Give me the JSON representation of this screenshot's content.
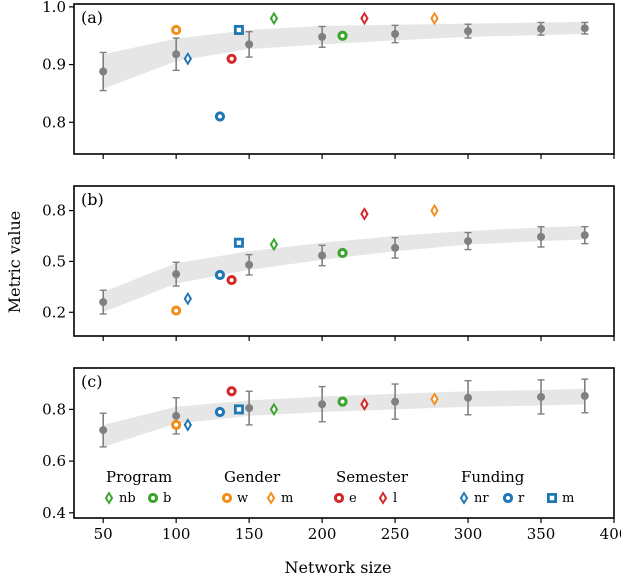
{
  "chart_data": {
    "type": "scatter",
    "xlabel": "Network size",
    "ylabel": "Metric value",
    "xlim": [
      30,
      400
    ],
    "xticks": [
      50,
      100,
      150,
      200,
      250,
      300,
      350,
      400
    ],
    "colors": {
      "baseline": "#808080",
      "band": "#e6e6e6",
      "green": "#3aa42d",
      "orange": "#f28e1c",
      "red": "#d62728",
      "blue": "#1f77b4"
    },
    "panels": [
      {
        "label": "(a)",
        "ylim": [
          0.745,
          1.005
        ],
        "yticks": [
          0.8,
          0.9,
          1.0
        ],
        "ytick_labels": [
          "0.8",
          "0.9",
          "1.0"
        ],
        "band": {
          "x": [
            50,
            100,
            150,
            200,
            250,
            300,
            350,
            380
          ],
          "lower": [
            0.858,
            0.906,
            0.927,
            0.935,
            0.942,
            0.948,
            0.951,
            0.953
          ],
          "upper": [
            0.918,
            0.945,
            0.96,
            0.967,
            0.969,
            0.971,
            0.973,
            0.974
          ]
        },
        "baseline": {
          "x": [
            50,
            100,
            150,
            200,
            250,
            300,
            350,
            380
          ],
          "y": [
            0.888,
            0.918,
            0.935,
            0.948,
            0.953,
            0.958,
            0.962,
            0.963
          ],
          "err": [
            0.033,
            0.028,
            0.022,
            0.018,
            0.015,
            0.012,
            0.011,
            0.01
          ]
        },
        "markers": [
          {
            "group": "Program",
            "key": "nb",
            "x": 167,
            "y": 0.98
          },
          {
            "group": "Program",
            "key": "b",
            "x": 214,
            "y": 0.95
          },
          {
            "group": "Gender",
            "key": "w",
            "x": 100,
            "y": 0.96
          },
          {
            "group": "Gender",
            "key": "m",
            "x": 277,
            "y": 0.98
          },
          {
            "group": "Semester",
            "key": "e",
            "x": 138,
            "y": 0.91
          },
          {
            "group": "Semester",
            "key": "l",
            "x": 229,
            "y": 0.98
          },
          {
            "group": "Funding",
            "key": "nr",
            "x": 108,
            "y": 0.91
          },
          {
            "group": "Funding",
            "key": "r",
            "x": 130,
            "y": 0.81
          },
          {
            "group": "Funding",
            "key": "m",
            "x": 143,
            "y": 0.96
          }
        ]
      },
      {
        "label": "(b)",
        "ylim": [
          0.06,
          0.945
        ],
        "yticks": [
          0.2,
          0.5,
          0.8
        ],
        "ytick_labels": [
          "0.2",
          "0.5",
          "0.8"
        ],
        "band": {
          "x": [
            50,
            100,
            150,
            200,
            250,
            300,
            350,
            380
          ],
          "lower": [
            0.2,
            0.37,
            0.45,
            0.51,
            0.56,
            0.6,
            0.62,
            0.63
          ],
          "upper": [
            0.32,
            0.49,
            0.56,
            0.61,
            0.65,
            0.68,
            0.7,
            0.71
          ]
        },
        "baseline": {
          "x": [
            50,
            100,
            150,
            200,
            250,
            300,
            350,
            380
          ],
          "y": [
            0.26,
            0.425,
            0.48,
            0.535,
            0.58,
            0.62,
            0.645,
            0.655
          ],
          "err": [
            0.07,
            0.07,
            0.06,
            0.06,
            0.06,
            0.05,
            0.06,
            0.05
          ]
        },
        "markers": [
          {
            "group": "Program",
            "key": "nb",
            "x": 167,
            "y": 0.6
          },
          {
            "group": "Program",
            "key": "b",
            "x": 214,
            "y": 0.55
          },
          {
            "group": "Gender",
            "key": "w",
            "x": 100,
            "y": 0.21
          },
          {
            "group": "Gender",
            "key": "m",
            "x": 277,
            "y": 0.8
          },
          {
            "group": "Semester",
            "key": "e",
            "x": 138,
            "y": 0.39
          },
          {
            "group": "Semester",
            "key": "l",
            "x": 229,
            "y": 0.78
          },
          {
            "group": "Funding",
            "key": "nr",
            "x": 108,
            "y": 0.28
          },
          {
            "group": "Funding",
            "key": "r",
            "x": 130,
            "y": 0.42
          },
          {
            "group": "Funding",
            "key": "m",
            "x": 143,
            "y": 0.61
          }
        ]
      },
      {
        "label": "(c)",
        "ylim": [
          0.38,
          0.96
        ],
        "yticks": [
          0.4,
          0.6,
          0.8
        ],
        "ytick_labels": [
          "0.4",
          "0.6",
          "0.8"
        ],
        "band": {
          "x": [
            50,
            100,
            150,
            200,
            250,
            300,
            350,
            380
          ],
          "lower": [
            0.655,
            0.745,
            0.775,
            0.79,
            0.8,
            0.81,
            0.815,
            0.82
          ],
          "upper": [
            0.74,
            0.81,
            0.835,
            0.85,
            0.86,
            0.87,
            0.875,
            0.88
          ]
        },
        "baseline": {
          "x": [
            50,
            100,
            150,
            200,
            250,
            300,
            350,
            380
          ],
          "y": [
            0.72,
            0.775,
            0.805,
            0.82,
            0.83,
            0.845,
            0.848,
            0.852
          ],
          "err": [
            0.065,
            0.07,
            0.065,
            0.068,
            0.068,
            0.066,
            0.066,
            0.065
          ]
        },
        "markers": [
          {
            "group": "Program",
            "key": "nb",
            "x": 167,
            "y": 0.8
          },
          {
            "group": "Program",
            "key": "b",
            "x": 214,
            "y": 0.83
          },
          {
            "group": "Gender",
            "key": "w",
            "x": 100,
            "y": 0.74
          },
          {
            "group": "Gender",
            "key": "m",
            "x": 277,
            "y": 0.84
          },
          {
            "group": "Semester",
            "key": "e",
            "x": 138,
            "y": 0.87
          },
          {
            "group": "Semester",
            "key": "l",
            "x": 229,
            "y": 0.82
          },
          {
            "group": "Funding",
            "key": "nr",
            "x": 108,
            "y": 0.74
          },
          {
            "group": "Funding",
            "key": "r",
            "x": 130,
            "y": 0.79
          },
          {
            "group": "Funding",
            "key": "m",
            "x": 143,
            "y": 0.8
          }
        ]
      }
    ],
    "legend": {
      "placement": "inside panel (c), lower area",
      "groups": [
        {
          "title": "Program",
          "items": [
            {
              "key": "nb",
              "label": "nb",
              "shape": "diamond",
              "color": "#3aa42d"
            },
            {
              "key": "b",
              "label": "b",
              "shape": "circle",
              "color": "#3aa42d"
            }
          ]
        },
        {
          "title": "Gender",
          "items": [
            {
              "key": "w",
              "label": "w",
              "shape": "circle",
              "color": "#f28e1c"
            },
            {
              "key": "m",
              "label": "m",
              "shape": "diamond",
              "color": "#f28e1c"
            }
          ]
        },
        {
          "title": "Semester",
          "items": [
            {
              "key": "e",
              "label": "e",
              "shape": "circle",
              "color": "#d62728"
            },
            {
              "key": "l",
              "label": "l",
              "shape": "diamond",
              "color": "#d62728"
            }
          ]
        },
        {
          "title": "Funding",
          "items": [
            {
              "key": "nr",
              "label": "nr",
              "shape": "diamond",
              "color": "#1f77b4"
            },
            {
              "key": "r",
              "label": "r",
              "shape": "circle",
              "color": "#1f77b4"
            },
            {
              "key": "m",
              "label": "m",
              "shape": "square",
              "color": "#1f77b4"
            }
          ]
        }
      ]
    }
  }
}
